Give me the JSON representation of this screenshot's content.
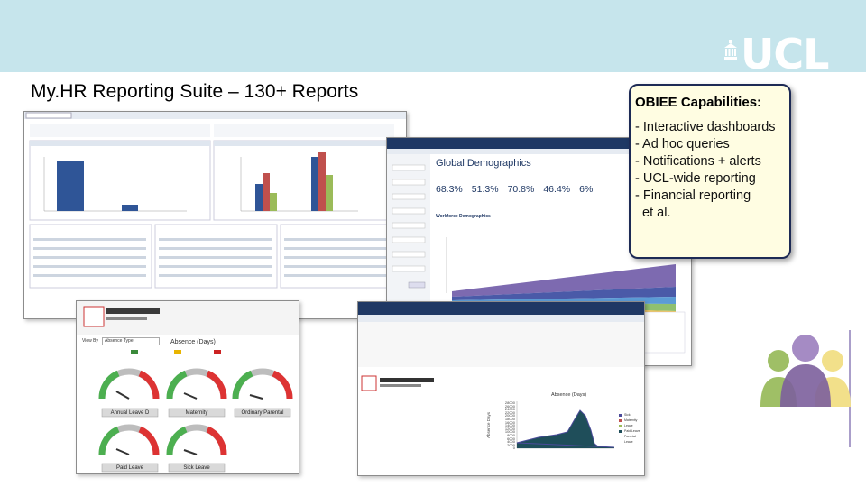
{
  "brand": {
    "logo_text": "UCL",
    "banner_color": "#c6e5ec"
  },
  "slide": {
    "title": "My.HR Reporting Suite – 130+ Reports"
  },
  "capabilities": {
    "heading": "OBIEE Capabilities:",
    "items": [
      "- Interactive dashboards",
      "- Ad hoc queries",
      "- Notifications + alerts",
      "- UCL-wide reporting",
      "- Financial reporting",
      "  et al."
    ]
  },
  "demographics": {
    "title": "Global Demographics",
    "kpis": [
      "68.3%",
      "51.3%",
      "70.8%",
      "46.4%",
      "6%"
    ],
    "section_title": "Workforce Demographics"
  },
  "absence_gauges": {
    "title": "Absence (Days)",
    "view_by_label": "View By",
    "view_by_value": "Absence Type",
    "gauges": [
      "Annual Leave D",
      "Maternity",
      "Ordinary Parental",
      "Paid Leave",
      "Sick Leave"
    ]
  },
  "absence_trend": {
    "title": "Absence (Days)",
    "y_ticks": [
      "28000",
      "26000",
      "24000",
      "22000",
      "20000",
      "18000",
      "16000",
      "14000",
      "12000",
      "10000",
      "8000",
      "6000",
      "4000",
      "2000",
      "0"
    ],
    "y_label": "Absence Days",
    "legend": [
      "Sick",
      "Maternity Leave",
      "Paid Leave",
      "Parental Leave"
    ]
  }
}
